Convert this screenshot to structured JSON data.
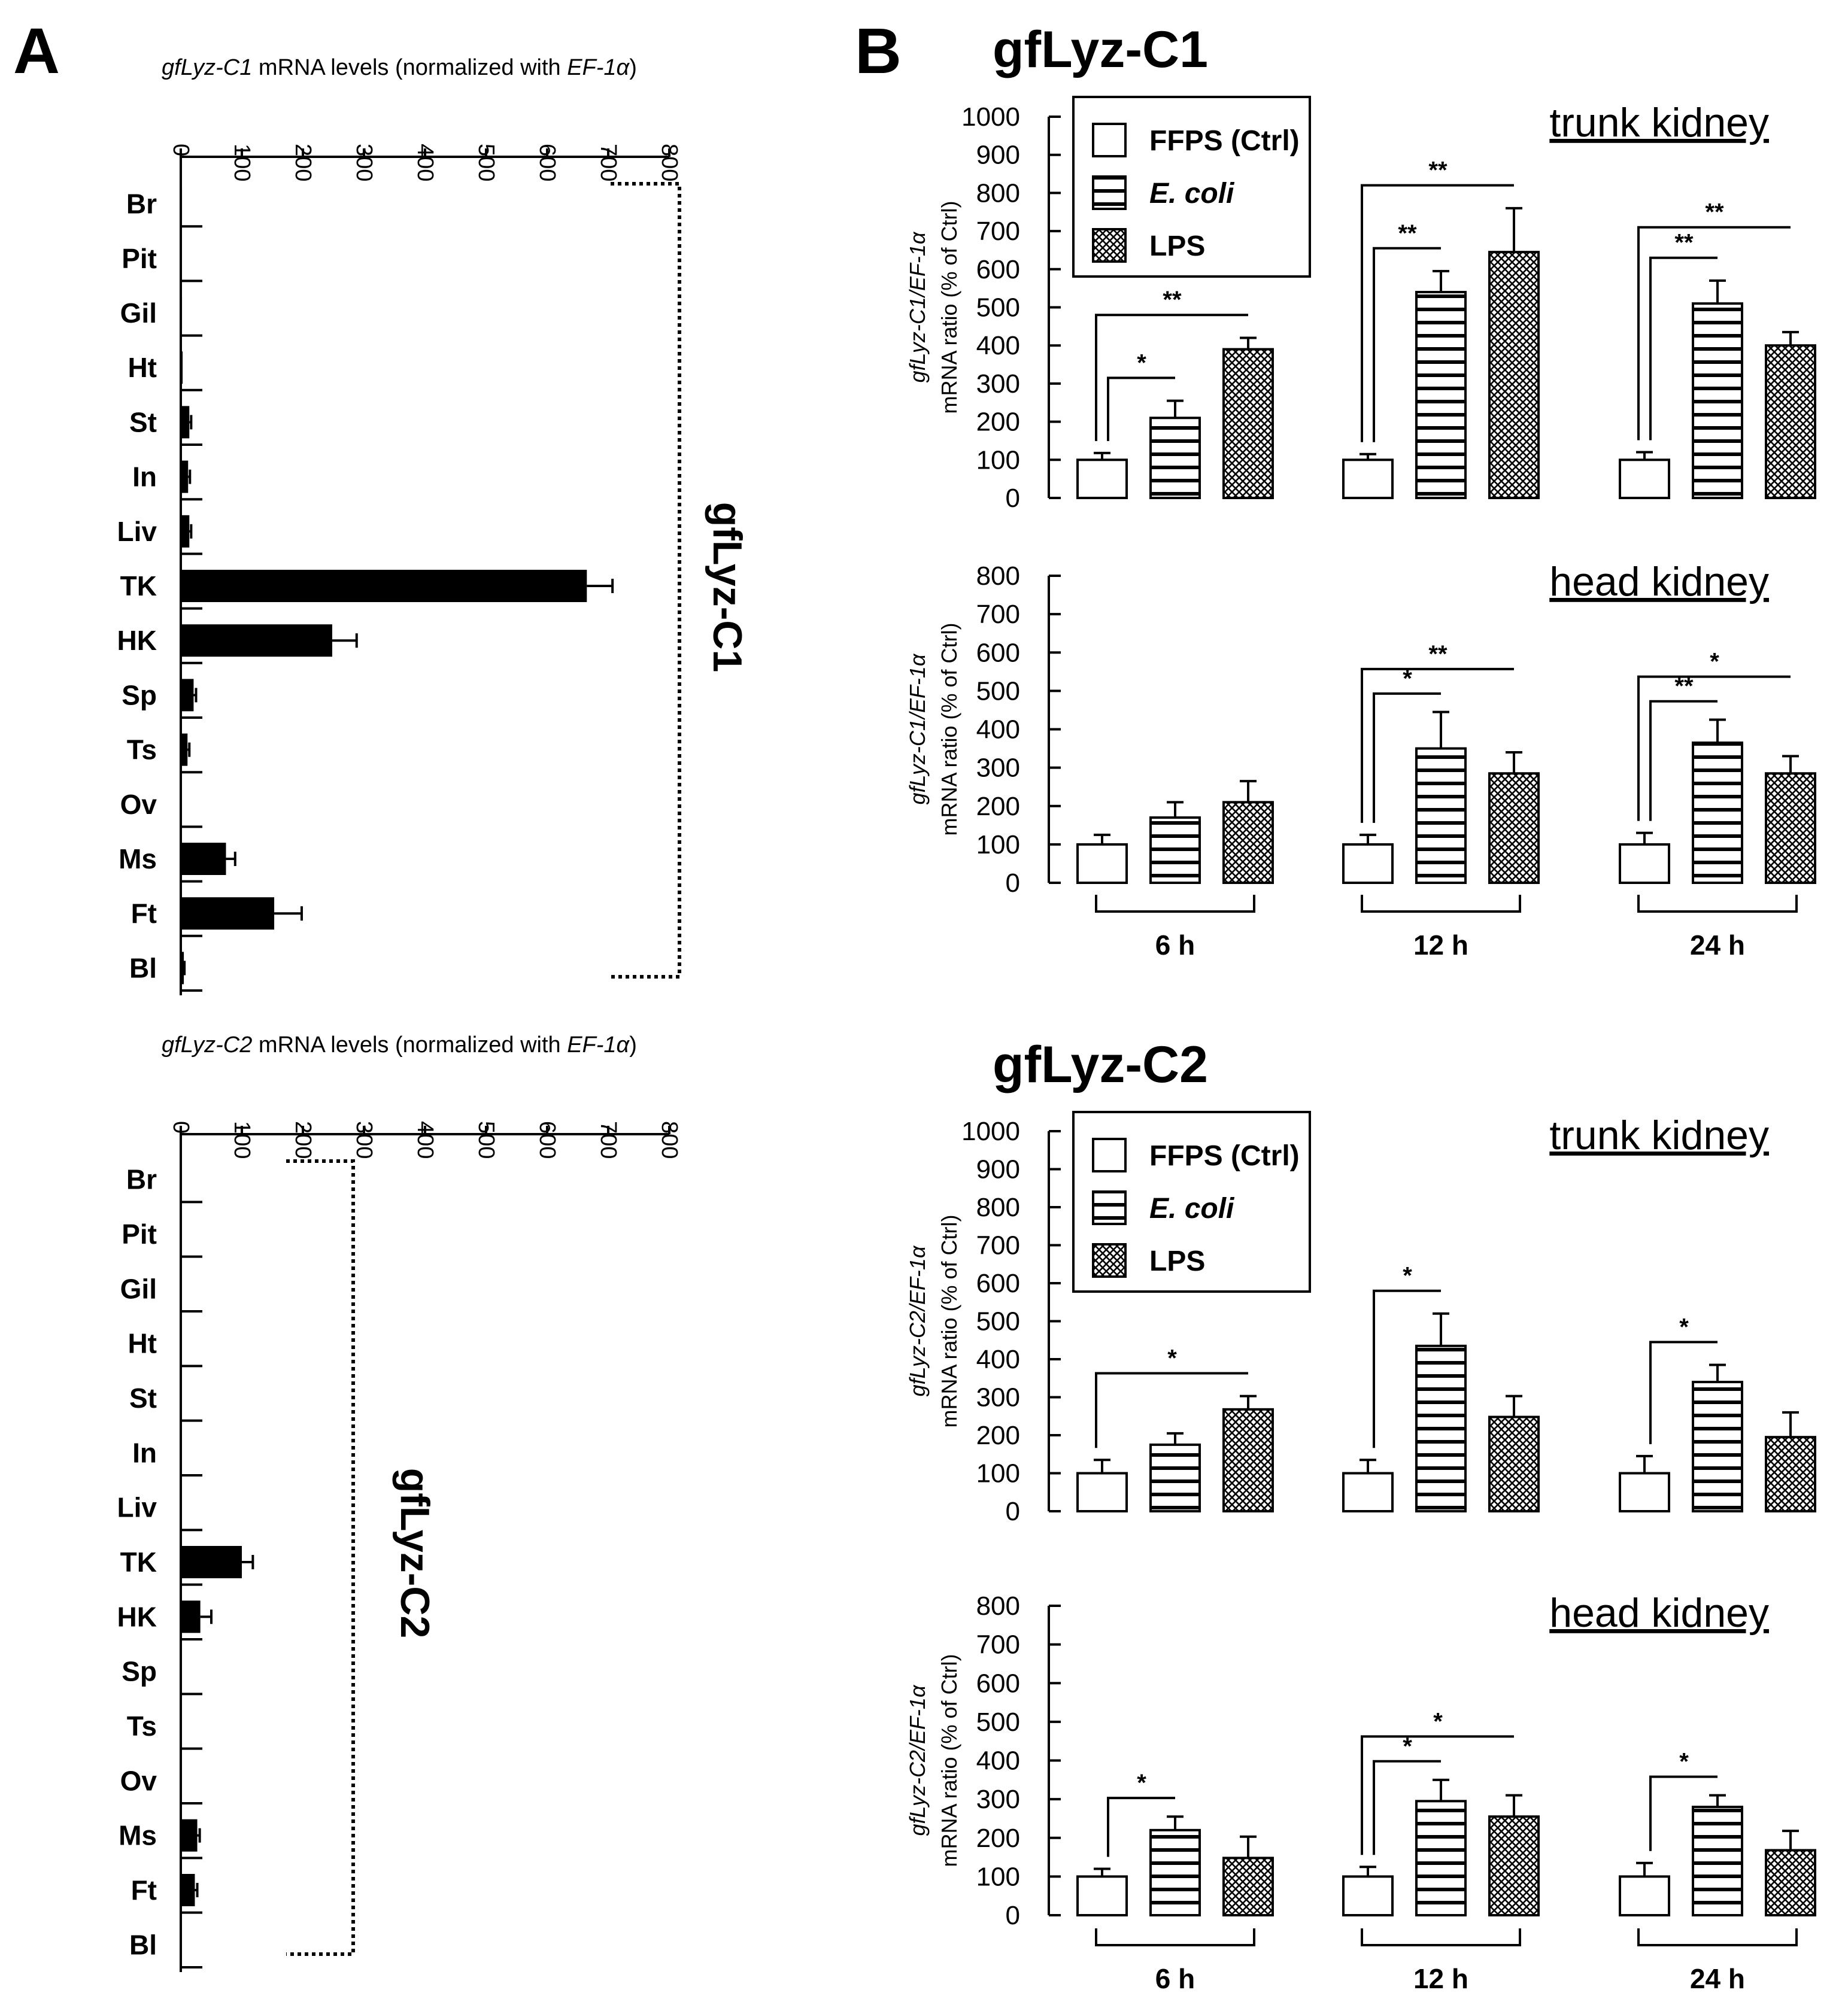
{
  "colors": {
    "ink": "#000000",
    "bar_fill_a": "#000000",
    "paper": "#ffffff"
  },
  "chart_data": [
    {
      "id": "A1",
      "type": "bar",
      "orientation": "horizontal",
      "panel_label": "A",
      "side_title": "gfLyz-C1",
      "axis_title": {
        "gene": "gfLyz-C1",
        "text": " mRNA levels (normalized with ",
        "norm": "EF-1α",
        "close": ")"
      },
      "xlim": [
        0,
        800
      ],
      "ticks": [
        0,
        100,
        200,
        300,
        400,
        500,
        600,
        700,
        800
      ],
      "categories": [
        "Br",
        "Pit",
        "Gil",
        "Ht",
        "St",
        "In",
        "Liv",
        "TK",
        "HK",
        "Sp",
        "Ts",
        "Ov",
        "Ms",
        "Ft",
        "Bl"
      ],
      "values": [
        2,
        0.5,
        2,
        3,
        14,
        12,
        14,
        665,
        248,
        21,
        11,
        0.5,
        74,
        153,
        5
      ],
      "errors": [
        0,
        0,
        0,
        0,
        3,
        3,
        3,
        42,
        40,
        4,
        3,
        0,
        15,
        45,
        1
      ]
    },
    {
      "id": "A2",
      "type": "bar",
      "orientation": "horizontal",
      "side_title": "gfLyz-C2",
      "axis_title": {
        "gene": "gfLyz-C2",
        "text": " mRNA levels (normalized with ",
        "norm": "EF-1α",
        "close": ")"
      },
      "xlim": [
        0,
        800
      ],
      "ticks": [
        0,
        100,
        200,
        300,
        400,
        500,
        600,
        700,
        800
      ],
      "categories": [
        "Br",
        "Pit",
        "Gil",
        "Ht",
        "St",
        "In",
        "Liv",
        "TK",
        "HK",
        "Sp",
        "Ts",
        "Ov",
        "Ms",
        "Ft",
        "Bl"
      ],
      "values": [
        0.5,
        0.3,
        0.3,
        0.3,
        0.3,
        0.3,
        0.3,
        100,
        32,
        0.3,
        0.3,
        0.3,
        27,
        23,
        0.3
      ],
      "errors": [
        0,
        0,
        0,
        0,
        0,
        0,
        0,
        18,
        18,
        0,
        0,
        0,
        4,
        4,
        0
      ]
    },
    {
      "id": "B1",
      "type": "bar",
      "panel_label": "B",
      "figure_title": "gfLyz-C1",
      "tissue": "trunk kidney",
      "ylabel": {
        "line1_gene": "gfLyz-C1/EF-1α",
        "line2": "mRNA ratio (% of Ctrl)"
      },
      "ylim": [
        0,
        1000
      ],
      "ticks": [
        0,
        100,
        200,
        300,
        400,
        500,
        600,
        700,
        800,
        900,
        1000
      ],
      "legend": [
        "FFPS (Ctrl)",
        "E. coli",
        "LPS"
      ],
      "categories": [
        "6 h",
        "12 h",
        "24 h"
      ],
      "series": [
        {
          "name": "FFPS (Ctrl)",
          "values": [
            100,
            100,
            100
          ],
          "errors": [
            18,
            15,
            20
          ]
        },
        {
          "name": "E. coli",
          "values": [
            210,
            540,
            510
          ],
          "errors": [
            45,
            55,
            60
          ]
        },
        {
          "name": "LPS",
          "values": [
            390,
            645,
            400
          ],
          "errors": [
            30,
            115,
            35
          ]
        }
      ],
      "significance": [
        {
          "group": 0,
          "to": 1,
          "label": "*"
        },
        {
          "group": 0,
          "to": 2,
          "label": "**"
        },
        {
          "group": 1,
          "to": 1,
          "label": "**"
        },
        {
          "group": 1,
          "to": 2,
          "label": "**"
        },
        {
          "group": 2,
          "to": 1,
          "label": "**"
        },
        {
          "group": 2,
          "to": 2,
          "label": "**"
        }
      ]
    },
    {
      "id": "B2",
      "type": "bar",
      "tissue": "head kidney",
      "ylabel": {
        "line1_gene": "gfLyz-C1/EF-1α",
        "line2": "mRNA ratio (% of Ctrl)"
      },
      "ylim": [
        0,
        800
      ],
      "ticks": [
        0,
        100,
        200,
        300,
        400,
        500,
        600,
        700,
        800
      ],
      "categories": [
        "6 h",
        "12 h",
        "24 h"
      ],
      "series": [
        {
          "name": "FFPS (Ctrl)",
          "values": [
            100,
            100,
            100
          ],
          "errors": [
            25,
            25,
            30
          ]
        },
        {
          "name": "E. coli",
          "values": [
            170,
            350,
            365
          ],
          "errors": [
            40,
            95,
            60
          ]
        },
        {
          "name": "LPS",
          "values": [
            210,
            285,
            285
          ],
          "errors": [
            55,
            55,
            45
          ]
        }
      ],
      "significance": [
        {
          "group": 1,
          "to": 1,
          "label": "*"
        },
        {
          "group": 1,
          "to": 2,
          "label": "**"
        },
        {
          "group": 2,
          "to": 1,
          "label": "**"
        },
        {
          "group": 2,
          "to": 2,
          "label": "*"
        }
      ]
    },
    {
      "id": "B3",
      "type": "bar",
      "figure_title": "gfLyz-C2",
      "tissue": "trunk kidney",
      "ylabel": {
        "line1_gene": "gfLyz-C2/EF-1α",
        "line2": "mRNA ratio (% of Ctrl)"
      },
      "ylim": [
        0,
        1000
      ],
      "ticks": [
        0,
        100,
        200,
        300,
        400,
        500,
        600,
        700,
        800,
        900,
        1000
      ],
      "legend": [
        "FFPS (Ctrl)",
        "E. coli",
        "LPS"
      ],
      "categories": [
        "6 h",
        "12 h",
        "24 h"
      ],
      "series": [
        {
          "name": "FFPS (Ctrl)",
          "values": [
            100,
            100,
            100
          ],
          "errors": [
            35,
            35,
            45
          ]
        },
        {
          "name": "E. coli",
          "values": [
            175,
            435,
            340
          ],
          "errors": [
            30,
            85,
            45
          ]
        },
        {
          "name": "LPS",
          "values": [
            268,
            248,
            195
          ],
          "errors": [
            35,
            55,
            65
          ]
        }
      ],
      "significance": [
        {
          "group": 0,
          "to": 2,
          "label": "*"
        },
        {
          "group": 1,
          "to": 1,
          "label": "*"
        },
        {
          "group": 2,
          "to": 1,
          "label": "*"
        }
      ]
    },
    {
      "id": "B4",
      "type": "bar",
      "tissue": "head kidney",
      "ylabel": {
        "line1_gene": "gfLyz-C2/EF-1α",
        "line2": "mRNA ratio (% of Ctrl)"
      },
      "ylim": [
        0,
        800
      ],
      "ticks": [
        0,
        100,
        200,
        300,
        400,
        500,
        600,
        700,
        800
      ],
      "categories": [
        "6 h",
        "12 h",
        "24 h"
      ],
      "series": [
        {
          "name": "FFPS (Ctrl)",
          "values": [
            100,
            100,
            100
          ],
          "errors": [
            20,
            25,
            35
          ]
        },
        {
          "name": "E. coli",
          "values": [
            220,
            295,
            280
          ],
          "errors": [
            35,
            55,
            30
          ]
        },
        {
          "name": "LPS",
          "values": [
            148,
            255,
            168
          ],
          "errors": [
            55,
            55,
            50
          ]
        }
      ],
      "significance": [
        {
          "group": 0,
          "to": 1,
          "label": "*"
        },
        {
          "group": 1,
          "to": 1,
          "label": "*"
        },
        {
          "group": 1,
          "to": 2,
          "label": "*"
        },
        {
          "group": 2,
          "to": 1,
          "label": "*"
        }
      ]
    }
  ]
}
